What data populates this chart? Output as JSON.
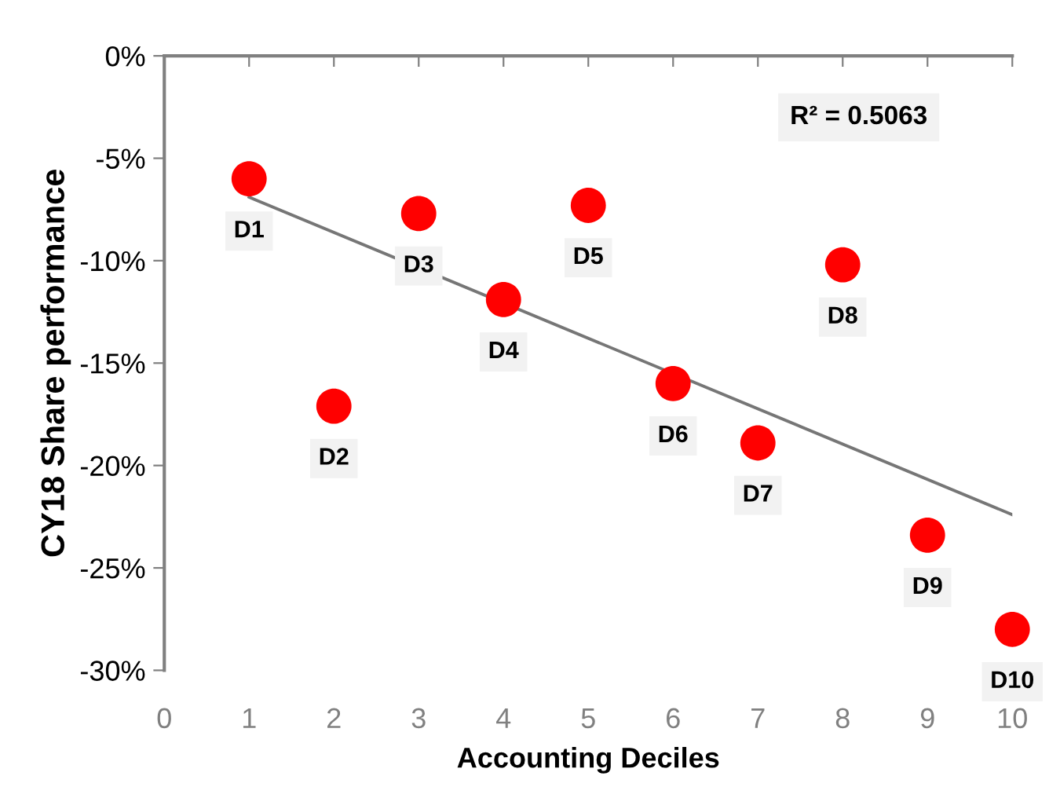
{
  "chart_data": {
    "type": "scatter",
    "xlabel": "Accounting Deciles",
    "ylabel": "CY18 Share performance",
    "x": [
      1,
      2,
      3,
      4,
      5,
      6,
      7,
      8,
      9,
      10
    ],
    "series": [
      {
        "color": "#ff0000",
        "marker": "circle",
        "values": [
          -6.0,
          -17.1,
          -7.7,
          -11.9,
          -7.3,
          -16.0,
          -18.9,
          -10.2,
          -23.4,
          -28.0
        ]
      },
      {
        "type": "line",
        "color": "#767676",
        "marker": "none",
        "line_style": "solid",
        "x": [
          1,
          10
        ],
        "values": [
          -6.9,
          -22.4
        ]
      }
    ],
    "annotations": [
      {
        "text": "D1",
        "x": 1,
        "y": -6.0
      },
      {
        "text": "D2",
        "x": 2,
        "y": -17.1
      },
      {
        "text": "D3",
        "x": 3,
        "y": -7.7
      },
      {
        "text": "D4",
        "x": 4,
        "y": -11.9
      },
      {
        "text": "D5",
        "x": 5,
        "y": -7.3
      },
      {
        "text": "D6",
        "x": 6,
        "y": -16.0
      },
      {
        "text": "D7",
        "x": 7,
        "y": -18.9
      },
      {
        "text": "D8",
        "x": 8,
        "y": -10.2
      },
      {
        "text": "D9",
        "x": 9,
        "y": -23.4
      },
      {
        "text": "D10",
        "x": 10,
        "y": -28.0
      },
      "R² = 0.5063"
    ],
    "xlim": [
      0,
      10
    ],
    "xticks": [
      0,
      1,
      2,
      3,
      4,
      5,
      6,
      7,
      8,
      9,
      10
    ],
    "ylim": [
      -30,
      0
    ],
    "yticks": [
      {
        "value": 0,
        "label": "0%"
      },
      {
        "value": -5,
        "label": "-5%"
      },
      {
        "value": -10,
        "label": "-10%"
      },
      {
        "value": -15,
        "label": "-15%"
      },
      {
        "value": -20,
        "label": "-20%"
      },
      {
        "value": -25,
        "label": "-25%"
      },
      {
        "value": -30,
        "label": "-30%"
      }
    ],
    "grid": false,
    "legend": false
  }
}
